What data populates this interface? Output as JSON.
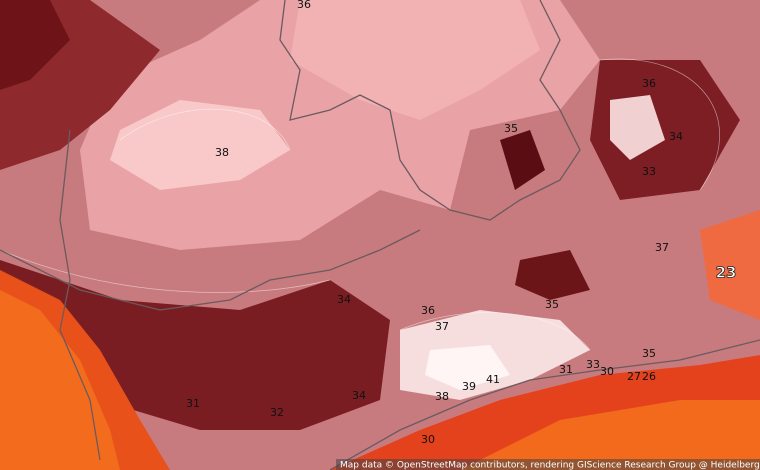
{
  "contour_labels": [
    "36",
    "38",
    "35",
    "36",
    "34",
    "33",
    "37",
    "23",
    "35",
    "36",
    "37",
    "34",
    "35",
    "33",
    "31",
    "30",
    "27",
    "26",
    "39",
    "41",
    "38",
    "34",
    "31",
    "32",
    "30"
  ],
  "attribution": "Map data © OpenStreetMap contributors, rendering GIScience Research Group @ Heidelberg University"
}
